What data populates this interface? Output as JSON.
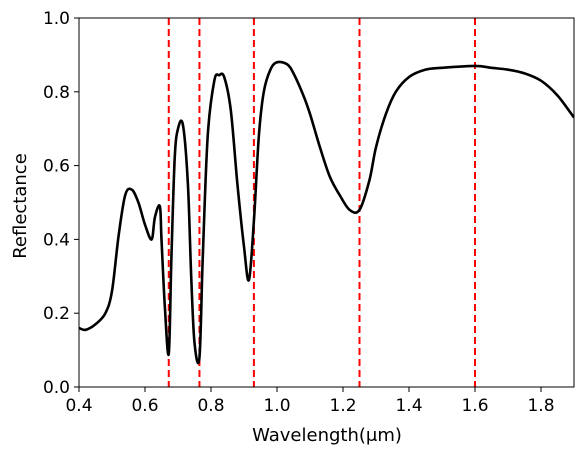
{
  "chart_data": {
    "type": "line",
    "xlabel": "Wavelength(μm)",
    "ylabel": "Reflectance",
    "xlim": [
      0.4,
      1.9
    ],
    "ylim": [
      0.0,
      1.0
    ],
    "grid": false,
    "x_ticks": [
      "0.4",
      "0.6",
      "0.8",
      "1.0",
      "1.2",
      "1.4",
      "1.6",
      "1.8"
    ],
    "y_ticks": [
      "0.0",
      "0.2",
      "0.4",
      "0.6",
      "0.8",
      "1.0"
    ],
    "series": [
      {
        "color": "#000000",
        "x": [
          0.4,
          0.42,
          0.45,
          0.48,
          0.5,
          0.52,
          0.54,
          0.56,
          0.58,
          0.6,
          0.62,
          0.63,
          0.645,
          0.65,
          0.66,
          0.672,
          0.68,
          0.69,
          0.7,
          0.715,
          0.73,
          0.74,
          0.75,
          0.765,
          0.775,
          0.79,
          0.81,
          0.825,
          0.84,
          0.86,
          0.88,
          0.9,
          0.915,
          0.93,
          0.945,
          0.96,
          0.98,
          1.0,
          1.03,
          1.05,
          1.08,
          1.1,
          1.13,
          1.16,
          1.19,
          1.22,
          1.25,
          1.28,
          1.3,
          1.33,
          1.36,
          1.4,
          1.45,
          1.5,
          1.6,
          1.65,
          1.7,
          1.75,
          1.8,
          1.85,
          1.9
        ],
        "y": [
          0.16,
          0.155,
          0.17,
          0.2,
          0.26,
          0.41,
          0.52,
          0.535,
          0.5,
          0.44,
          0.4,
          0.46,
          0.49,
          0.4,
          0.22,
          0.09,
          0.35,
          0.62,
          0.7,
          0.71,
          0.55,
          0.3,
          0.12,
          0.08,
          0.35,
          0.68,
          0.83,
          0.845,
          0.84,
          0.75,
          0.55,
          0.38,
          0.29,
          0.45,
          0.68,
          0.8,
          0.86,
          0.88,
          0.875,
          0.85,
          0.79,
          0.74,
          0.65,
          0.57,
          0.52,
          0.48,
          0.48,
          0.56,
          0.65,
          0.74,
          0.8,
          0.84,
          0.86,
          0.865,
          0.87,
          0.865,
          0.86,
          0.85,
          0.83,
          0.79,
          0.73
        ]
      }
    ],
    "vlines": {
      "color": "#ff0000",
      "style": "dashed",
      "x": [
        0.672,
        0.765,
        0.93,
        1.25,
        1.6
      ]
    }
  }
}
